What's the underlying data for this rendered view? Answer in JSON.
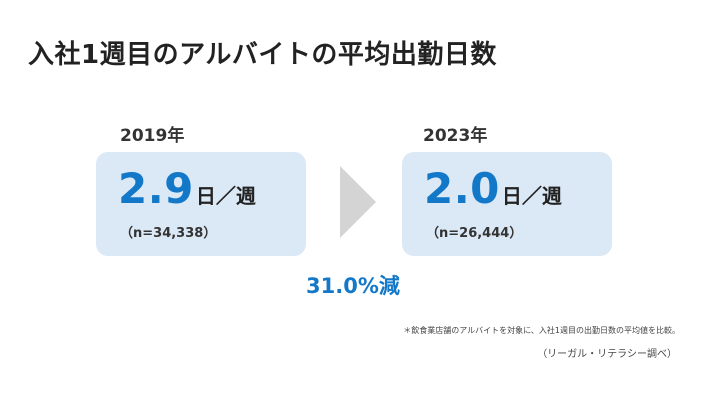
{
  "title": "入社1週目のアルバイトの平均出勤日数",
  "before": {
    "year": "2019年",
    "value": "2.9",
    "unit": "日／週",
    "sample": "（n=34,338）"
  },
  "after": {
    "year": "2023年",
    "value": "2.0",
    "unit": "日／週",
    "sample": "（n=26,444）"
  },
  "change": "31.0%減",
  "note": "＊飲食業店舗のアルバイトを対象に、入社1週目の出勤日数の平均値を比較。",
  "source": "（リーガル・リテラシー調べ）",
  "colors": {
    "accent": "#1478c8",
    "card_bg": "#dbe8f6",
    "arrow": "#d4d4d4"
  }
}
